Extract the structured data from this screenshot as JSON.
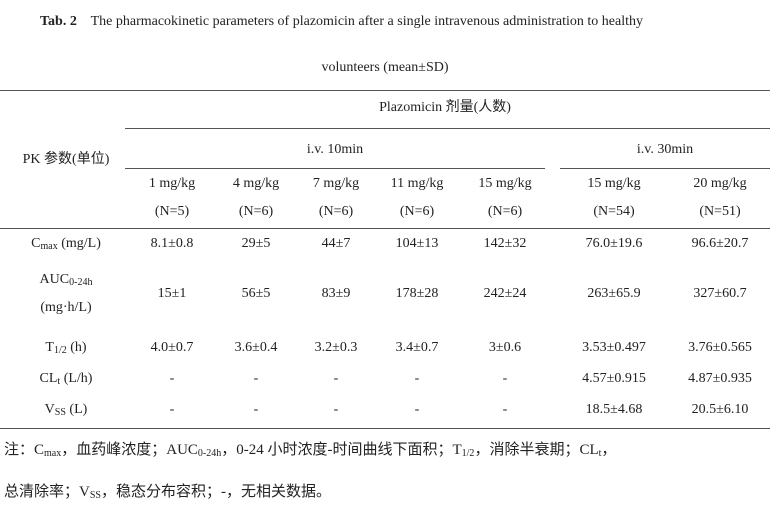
{
  "title": {
    "label": "Tab. 2",
    "line1": "The pharmacokinetic parameters of plazomicin after a single intravenous administration to healthy",
    "line2": "volunteers (mean±SD)"
  },
  "header": {
    "group_header": "Plazomicin 剂量(人数)",
    "param_header": "PK 参数(单位)",
    "groups": [
      {
        "name": "i.v. 10min",
        "doses": [
          {
            "dose": "1 mg/kg",
            "n": "(N=5)"
          },
          {
            "dose": "4 mg/kg",
            "n": "(N=6)"
          },
          {
            "dose": "7 mg/kg",
            "n": "(N=6)"
          },
          {
            "dose": "11 mg/kg",
            "n": "(N=6)"
          },
          {
            "dose": "15 mg/kg",
            "n": "(N=6)"
          }
        ]
      },
      {
        "name": "i.v. 30min",
        "doses": [
          {
            "dose": "15 mg/kg",
            "n": "(N=54)"
          },
          {
            "dose": "20 mg/kg",
            "n": "(N=51)"
          }
        ]
      }
    ]
  },
  "table": {
    "rows": [
      {
        "label": [
          [
            {
              "text": "C"
            },
            {
              "sub": "max"
            },
            {
              "text": " (mg/L)"
            }
          ]
        ],
        "values": [
          "8.1±0.8",
          "29±5",
          "44±7",
          "104±13",
          "142±32",
          "76.0±19.6",
          "96.6±20.7"
        ]
      },
      {
        "label": [
          [
            {
              "text": "AUC"
            },
            {
              "sub": "0-24h"
            }
          ],
          [
            {
              "text": "(mg·h/L)"
            }
          ]
        ],
        "values": [
          "15±1",
          "56±5",
          "83±9",
          "178±28",
          "242±24",
          "263±65.9",
          "327±60.7"
        ]
      },
      {
        "label": [
          [
            {
              "text": "T"
            },
            {
              "sub": "1/2"
            },
            {
              "text": " (h)"
            }
          ]
        ],
        "values": [
          "4.0±0.7",
          "3.6±0.4",
          "3.2±0.3",
          "3.4±0.7",
          "3±0.6",
          "3.53±0.497",
          "3.76±0.565"
        ]
      },
      {
        "label": [
          [
            {
              "text": "CL"
            },
            {
              "sub": "t"
            },
            {
              "text": " (L/h)"
            }
          ]
        ],
        "values": [
          "-",
          "-",
          "-",
          "-",
          "-",
          "4.57±0.915",
          "4.87±0.935"
        ]
      },
      {
        "label": [
          [
            {
              "text": "V"
            },
            {
              "sub": "SS"
            },
            {
              "text": " (L)"
            }
          ]
        ],
        "values": [
          "-",
          "-",
          "-",
          "-",
          "-",
          "18.5±4.68",
          "20.5±6.10"
        ]
      }
    ]
  },
  "notes": [
    [
      {
        "text": "注：C"
      },
      {
        "sub": "max"
      },
      {
        "text": "，血药峰浓度；AUC"
      },
      {
        "sub": "0-24h"
      },
      {
        "text": "，0-24 小时浓度-时间曲线下面积；T"
      },
      {
        "sub": "1/2"
      },
      {
        "text": "，消除半衰期；CL"
      },
      {
        "sub": "t"
      },
      {
        "text": "，"
      }
    ],
    [
      {
        "text": "总清除率；V"
      },
      {
        "sub": "SS"
      },
      {
        "text": "，稳态分布容积；-，无相关数据。"
      }
    ]
  ]
}
